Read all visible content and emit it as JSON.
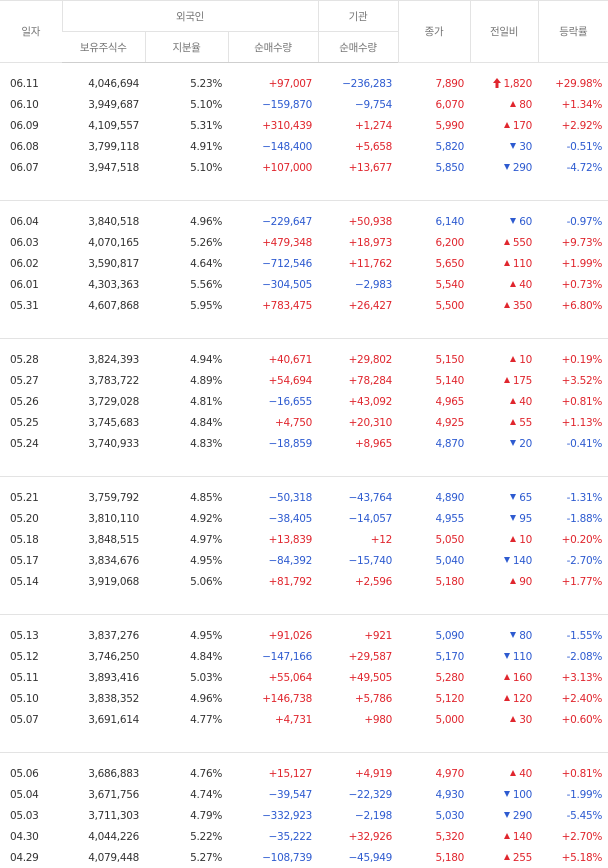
{
  "header": {
    "date": "일자",
    "foreign": "외국인",
    "institution": "기관",
    "close": "종가",
    "change": "전일비",
    "rate": "등락률",
    "holdings": "보유주식수",
    "share": "지분율",
    "foreign_net": "순매수량",
    "institution_net": "순매수량"
  },
  "groups": [
    [
      {
        "cells": [
          "06.11",
          "4,046,694",
          "5.23%",
          "+97,007",
          "−236,283",
          "7,890",
          "1,820",
          "+29.98%"
        ],
        "trend": "limit-up"
      },
      {
        "cells": [
          "06.10",
          "3,949,687",
          "5.10%",
          "−159,870",
          "−9,754",
          "6,070",
          "80",
          "+1.34%"
        ],
        "trend": "up"
      },
      {
        "cells": [
          "06.09",
          "4,109,557",
          "5.31%",
          "+310,439",
          "+1,274",
          "5,990",
          "170",
          "+2.92%"
        ],
        "trend": "up"
      },
      {
        "cells": [
          "06.08",
          "3,799,118",
          "4.91%",
          "−148,400",
          "+5,658",
          "5,820",
          "30",
          "-0.51%"
        ],
        "trend": "down"
      },
      {
        "cells": [
          "06.07",
          "3,947,518",
          "5.10%",
          "+107,000",
          "+13,677",
          "5,850",
          "290",
          "-4.72%"
        ],
        "trend": "down"
      }
    ],
    [
      {
        "cells": [
          "06.04",
          "3,840,518",
          "4.96%",
          "−229,647",
          "+50,938",
          "6,140",
          "60",
          "-0.97%"
        ],
        "trend": "down"
      },
      {
        "cells": [
          "06.03",
          "4,070,165",
          "5.26%",
          "+479,348",
          "+18,973",
          "6,200",
          "550",
          "+9.73%"
        ],
        "trend": "up"
      },
      {
        "cells": [
          "06.02",
          "3,590,817",
          "4.64%",
          "−712,546",
          "+11,762",
          "5,650",
          "110",
          "+1.99%"
        ],
        "trend": "up"
      },
      {
        "cells": [
          "06.01",
          "4,303,363",
          "5.56%",
          "−304,505",
          "−2,983",
          "5,540",
          "40",
          "+0.73%"
        ],
        "trend": "up"
      },
      {
        "cells": [
          "05.31",
          "4,607,868",
          "5.95%",
          "+783,475",
          "+26,427",
          "5,500",
          "350",
          "+6.80%"
        ],
        "trend": "up"
      }
    ],
    [
      {
        "cells": [
          "05.28",
          "3,824,393",
          "4.94%",
          "+40,671",
          "+29,802",
          "5,150",
          "10",
          "+0.19%"
        ],
        "trend": "up"
      },
      {
        "cells": [
          "05.27",
          "3,783,722",
          "4.89%",
          "+54,694",
          "+78,284",
          "5,140",
          "175",
          "+3.52%"
        ],
        "trend": "up"
      },
      {
        "cells": [
          "05.26",
          "3,729,028",
          "4.81%",
          "−16,655",
          "+43,092",
          "4,965",
          "40",
          "+0.81%"
        ],
        "trend": "up"
      },
      {
        "cells": [
          "05.25",
          "3,745,683",
          "4.84%",
          "+4,750",
          "+20,310",
          "4,925",
          "55",
          "+1.13%"
        ],
        "trend": "up"
      },
      {
        "cells": [
          "05.24",
          "3,740,933",
          "4.83%",
          "−18,859",
          "+8,965",
          "4,870",
          "20",
          "-0.41%"
        ],
        "trend": "down"
      }
    ],
    [
      {
        "cells": [
          "05.21",
          "3,759,792",
          "4.85%",
          "−50,318",
          "−43,764",
          "4,890",
          "65",
          "-1.31%"
        ],
        "trend": "down"
      },
      {
        "cells": [
          "05.20",
          "3,810,110",
          "4.92%",
          "−38,405",
          "−14,057",
          "4,955",
          "95",
          "-1.88%"
        ],
        "trend": "down"
      },
      {
        "cells": [
          "05.18",
          "3,848,515",
          "4.97%",
          "+13,839",
          "+12",
          "5,050",
          "10",
          "+0.20%"
        ],
        "trend": "up"
      },
      {
        "cells": [
          "05.17",
          "3,834,676",
          "4.95%",
          "−84,392",
          "−15,740",
          "5,040",
          "140",
          "-2.70%"
        ],
        "trend": "down"
      },
      {
        "cells": [
          "05.14",
          "3,919,068",
          "5.06%",
          "+81,792",
          "+2,596",
          "5,180",
          "90",
          "+1.77%"
        ],
        "trend": "up"
      }
    ],
    [
      {
        "cells": [
          "05.13",
          "3,837,276",
          "4.95%",
          "+91,026",
          "+921",
          "5,090",
          "80",
          "-1.55%"
        ],
        "trend": "down"
      },
      {
        "cells": [
          "05.12",
          "3,746,250",
          "4.84%",
          "−147,166",
          "+29,587",
          "5,170",
          "110",
          "-2.08%"
        ],
        "trend": "down"
      },
      {
        "cells": [
          "05.11",
          "3,893,416",
          "5.03%",
          "+55,064",
          "+49,505",
          "5,280",
          "160",
          "+3.13%"
        ],
        "trend": "up"
      },
      {
        "cells": [
          "05.10",
          "3,838,352",
          "4.96%",
          "+146,738",
          "+5,786",
          "5,120",
          "120",
          "+2.40%"
        ],
        "trend": "up"
      },
      {
        "cells": [
          "05.07",
          "3,691,614",
          "4.77%",
          "+4,731",
          "+980",
          "5,000",
          "30",
          "+0.60%"
        ],
        "trend": "up"
      }
    ],
    [
      {
        "cells": [
          "05.06",
          "3,686,883",
          "4.76%",
          "+15,127",
          "+4,919",
          "4,970",
          "40",
          "+0.81%"
        ],
        "trend": "up"
      },
      {
        "cells": [
          "05.04",
          "3,671,756",
          "4.74%",
          "−39,547",
          "−22,329",
          "4,930",
          "100",
          "-1.99%"
        ],
        "trend": "down"
      },
      {
        "cells": [
          "05.03",
          "3,711,303",
          "4.79%",
          "−332,923",
          "−2,198",
          "5,030",
          "290",
          "-5.45%"
        ],
        "trend": "down"
      },
      {
        "cells": [
          "04.30",
          "4,044,226",
          "5.22%",
          "−35,222",
          "+32,926",
          "5,320",
          "140",
          "+2.70%"
        ],
        "trend": "up"
      },
      {
        "cells": [
          "04.29",
          "4,079,448",
          "5.27%",
          "−108,739",
          "−45,949",
          "5,180",
          "255",
          "+5.18%"
        ],
        "trend": "up"
      }
    ]
  ]
}
